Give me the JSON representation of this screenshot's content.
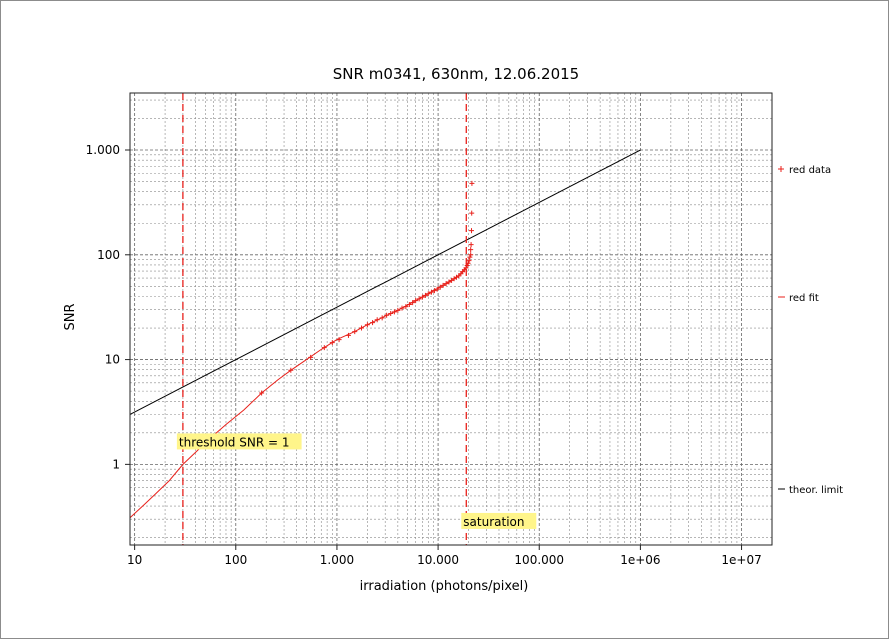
{
  "chart_data": {
    "type": "scatter",
    "title": "SNR m0341, 630nm, 12.06.2015",
    "xlabel": "irradiation (photons/pixel)",
    "ylabel": "SNR",
    "x_scale": "log",
    "y_scale": "log",
    "xlim": [
      9,
      20000000
    ],
    "ylim": [
      0.17,
      3500
    ],
    "grid": true,
    "legend_position": "right",
    "x_ticks": [
      {
        "value": 10,
        "label": "10"
      },
      {
        "value": 100,
        "label": "100"
      },
      {
        "value": 1000,
        "label": "1.000"
      },
      {
        "value": 10000,
        "label": "10.000"
      },
      {
        "value": 100000,
        "label": "100.000"
      },
      {
        "value": 1000000,
        "label": "1e+06"
      },
      {
        "value": 10000000,
        "label": "1e+07"
      }
    ],
    "y_ticks": [
      {
        "value": 1,
        "label": "1"
      },
      {
        "value": 10,
        "label": "10"
      },
      {
        "value": 100,
        "label": "100"
      },
      {
        "value": 1000,
        "label": "1.000"
      }
    ],
    "series": [
      {
        "name": "red data",
        "kind": "markers",
        "marker": "+",
        "color": "#e8211b",
        "points": [
          [
            180,
            4.8
          ],
          [
            350,
            7.9
          ],
          [
            550,
            10.5
          ],
          [
            750,
            13
          ],
          [
            900,
            14.5
          ],
          [
            1050,
            15.5
          ],
          [
            1300,
            17
          ],
          [
            1500,
            18.5
          ],
          [
            1750,
            20
          ],
          [
            2000,
            21.5
          ],
          [
            2250,
            22.5
          ],
          [
            2500,
            24
          ],
          [
            2800,
            25
          ],
          [
            3100,
            26.5
          ],
          [
            3400,
            27.5
          ],
          [
            3700,
            28.5
          ],
          [
            4000,
            29.5
          ],
          [
            4400,
            31
          ],
          [
            4800,
            32
          ],
          [
            5200,
            33.5
          ],
          [
            5600,
            35
          ],
          [
            6000,
            36.5
          ],
          [
            6500,
            38
          ],
          [
            7000,
            39.5
          ],
          [
            7500,
            41
          ],
          [
            8000,
            42.5
          ],
          [
            8600,
            44
          ],
          [
            9200,
            45.5
          ],
          [
            9800,
            47
          ],
          [
            10500,
            49
          ],
          [
            11200,
            51
          ],
          [
            12000,
            53
          ],
          [
            12800,
            55
          ],
          [
            13600,
            57
          ],
          [
            14400,
            59
          ],
          [
            15200,
            61
          ],
          [
            16000,
            63
          ],
          [
            16800,
            66
          ],
          [
            17500,
            69
          ],
          [
            18200,
            72
          ],
          [
            18900,
            75
          ],
          [
            19400,
            79
          ],
          [
            19800,
            83
          ],
          [
            20200,
            88
          ],
          [
            20600,
            95
          ],
          [
            21000,
            100
          ],
          [
            21000,
            112
          ],
          [
            21200,
            125
          ],
          [
            21400,
            170
          ],
          [
            21500,
            250
          ],
          [
            21600,
            480
          ]
        ]
      },
      {
        "name": "red fit",
        "kind": "line",
        "color": "#e8211b",
        "points": [
          [
            9,
            0.31
          ],
          [
            12,
            0.4
          ],
          [
            16,
            0.52
          ],
          [
            22,
            0.7
          ],
          [
            30,
            1.0
          ],
          [
            40,
            1.3
          ],
          [
            55,
            1.75
          ],
          [
            80,
            2.4
          ],
          [
            120,
            3.3
          ],
          [
            180,
            4.8
          ],
          [
            260,
            6.4
          ],
          [
            350,
            7.9
          ],
          [
            500,
            10
          ],
          [
            700,
            12.5
          ],
          [
            1000,
            15.5
          ],
          [
            1500,
            18.5
          ],
          [
            2000,
            21.5
          ],
          [
            3000,
            26
          ],
          [
            4000,
            29.5
          ],
          [
            6000,
            36.5
          ],
          [
            8000,
            42.5
          ],
          [
            10000,
            48
          ],
          [
            12000,
            53
          ],
          [
            14000,
            58
          ],
          [
            16000,
            63
          ],
          [
            18000,
            71
          ],
          [
            19500,
            79
          ],
          [
            20500,
            88
          ]
        ]
      },
      {
        "name": "theor. limit",
        "kind": "line",
        "color": "#000000",
        "points": [
          [
            9,
            3.0
          ],
          [
            1000000,
            1000
          ]
        ]
      }
    ],
    "annotations": [
      {
        "text": "threshold SNR = 1",
        "x": 30,
        "y": 1.55,
        "vertical_line_at_x": 30,
        "color": "#e8211b"
      },
      {
        "text": "saturation",
        "x": 19000,
        "y": 0.27,
        "vertical_line_at_x": 19000,
        "color": "#e8211b"
      }
    ],
    "highlight_color": "#fff58a"
  }
}
